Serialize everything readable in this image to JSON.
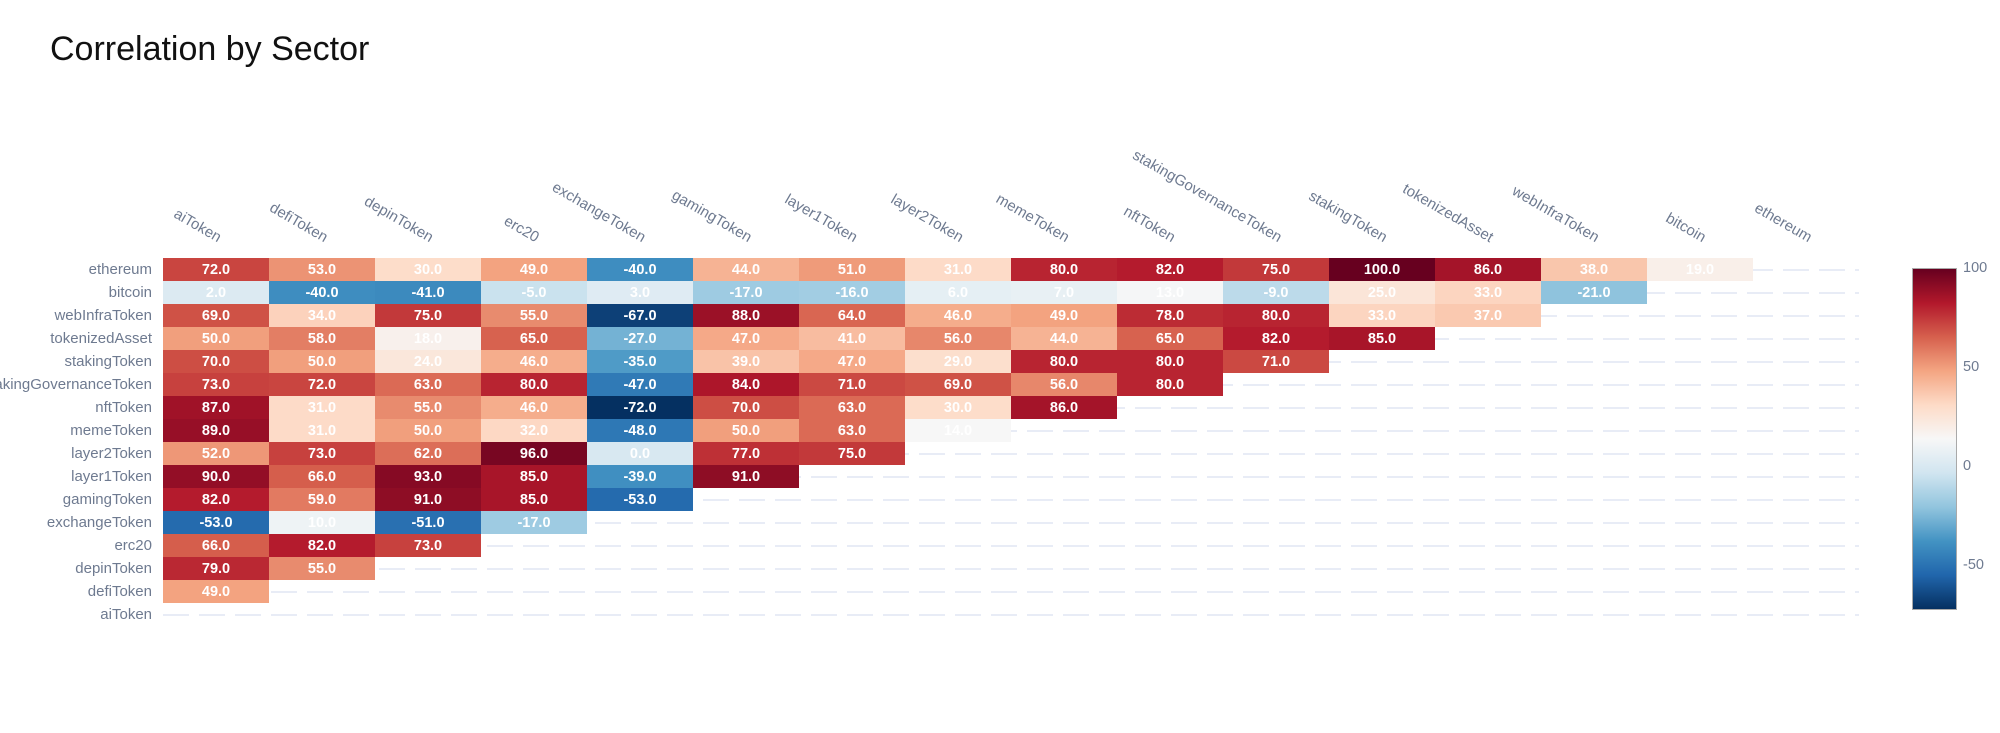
{
  "title": "Correlation by Sector",
  "colors": {
    "title_text": "#111111",
    "axis_label_text": "#6e7a90",
    "cell_text": "#ffffff",
    "grid_dash": "#e8ecf6",
    "colorbar_border": "#a9a9a9",
    "max_color": "#67001f",
    "min_color": "#053061"
  },
  "chart_data": {
    "type": "heatmap",
    "title": "Correlation by Sector",
    "x_categories": [
      "aiToken",
      "defiToken",
      "depinToken",
      "erc20",
      "exchangeToken",
      "gamingToken",
      "layer1Token",
      "layer2Token",
      "memeToken",
      "nftToken",
      "stakingGovernanceToken",
      "stakingToken",
      "tokenizedAsset",
      "webInfraToken",
      "bitcoin",
      "ethereum"
    ],
    "y_categories_top_to_bottom": [
      "ethereum",
      "bitcoin",
      "webInfraToken",
      "tokenizedAsset",
      "stakingToken",
      "stakingGovernanceToken",
      "nftToken",
      "memeToken",
      "layer2Token",
      "layer1Token",
      "gamingToken",
      "exchangeToken",
      "erc20",
      "depinToken",
      "defiToken",
      "aiToken"
    ],
    "rows": [
      {
        "name": "ethereum",
        "values": [
          72,
          53,
          30,
          49,
          -40,
          44,
          51,
          31,
          80,
          82,
          75,
          100,
          86,
          38,
          19
        ]
      },
      {
        "name": "bitcoin",
        "values": [
          2,
          -40,
          -41,
          -5,
          3,
          -17,
          -16,
          6,
          7,
          13,
          -9,
          25,
          33,
          -21
        ]
      },
      {
        "name": "webInfraToken",
        "values": [
          69,
          34,
          75,
          55,
          -67,
          88,
          64,
          46,
          49,
          78,
          80,
          33,
          37
        ]
      },
      {
        "name": "tokenizedAsset",
        "values": [
          50,
          58,
          18,
          65,
          -27,
          47,
          41,
          56,
          44,
          65,
          82,
          85
        ]
      },
      {
        "name": "stakingToken",
        "values": [
          70,
          50,
          24,
          46,
          -35,
          39,
          47,
          29,
          80,
          80,
          71
        ]
      },
      {
        "name": "stakingGovernanceToken",
        "values": [
          73,
          72,
          63,
          80,
          -47,
          84,
          71,
          69,
          56,
          80
        ]
      },
      {
        "name": "nftToken",
        "values": [
          87,
          31,
          55,
          46,
          -72,
          70,
          63,
          30,
          86
        ]
      },
      {
        "name": "memeToken",
        "values": [
          89,
          31,
          50,
          32,
          -48,
          50,
          63,
          14
        ]
      },
      {
        "name": "layer2Token",
        "values": [
          52,
          73,
          62,
          96,
          0,
          77,
          75
        ]
      },
      {
        "name": "layer1Token",
        "values": [
          90,
          66,
          93,
          85,
          -39,
          91
        ]
      },
      {
        "name": "gamingToken",
        "values": [
          82,
          59,
          91,
          85,
          -53
        ]
      },
      {
        "name": "exchangeToken",
        "values": [
          -53,
          10,
          -51,
          -17
        ]
      },
      {
        "name": "erc20",
        "values": [
          66,
          82,
          73
        ]
      },
      {
        "name": "depinToken",
        "values": [
          79,
          55
        ]
      },
      {
        "name": "defiToken",
        "values": [
          49
        ]
      },
      {
        "name": "aiToken",
        "values": []
      }
    ],
    "value_decimals": 1,
    "zmin": -72,
    "zmax": 100,
    "colorscale": [
      [
        0.0,
        "#053061"
      ],
      [
        0.1,
        "#2166ac"
      ],
      [
        0.2,
        "#4393c3"
      ],
      [
        0.3,
        "#92c5de"
      ],
      [
        0.4,
        "#d1e5f0"
      ],
      [
        0.5,
        "#f7f7f7"
      ],
      [
        0.6,
        "#fddbc7"
      ],
      [
        0.7,
        "#f4a582"
      ],
      [
        0.8,
        "#d6604d"
      ],
      [
        0.9,
        "#b2182b"
      ],
      [
        1.0,
        "#67001f"
      ]
    ],
    "colorbar_ticks": [
      100,
      50,
      0,
      -50
    ],
    "legend_position": "right",
    "grid": "dashed-row-lines-in-empty-cells"
  }
}
